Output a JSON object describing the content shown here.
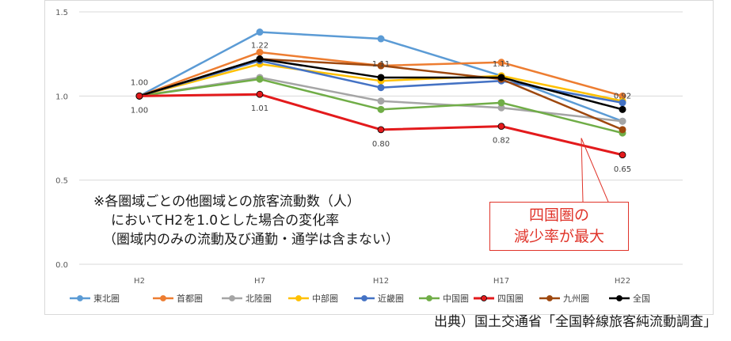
{
  "chart_data": {
    "type": "line",
    "categories": [
      "H2",
      "H7",
      "H12",
      "H17",
      "H22"
    ],
    "ylim": [
      0,
      1.5
    ],
    "yticks": [
      "0.0",
      "0.5",
      "1.0",
      "1.5"
    ],
    "grid": true,
    "legend_placement": "bottom",
    "series": [
      {
        "name": "東北圏",
        "color": "#5b9bd5",
        "values": [
          1.0,
          1.38,
          1.34,
          1.12,
          0.85
        ]
      },
      {
        "name": "首都圏",
        "color": "#ed7d31",
        "values": [
          1.0,
          1.26,
          1.18,
          1.2,
          1.0
        ]
      },
      {
        "name": "北陸圏",
        "color": "#a5a5a5",
        "values": [
          1.0,
          1.11,
          0.97,
          0.93,
          0.85
        ]
      },
      {
        "name": "中部圏",
        "color": "#ffc000",
        "values": [
          1.0,
          1.19,
          1.09,
          1.12,
          0.97
        ]
      },
      {
        "name": "近畿圏",
        "color": "#4472c4",
        "values": [
          1.0,
          1.21,
          1.05,
          1.09,
          0.96
        ]
      },
      {
        "name": "中国圏",
        "color": "#70ad47",
        "values": [
          1.0,
          1.1,
          0.92,
          0.96,
          0.78
        ]
      },
      {
        "name": "四国圏",
        "color": "#e31a1c",
        "values": [
          1.0,
          1.01,
          0.8,
          0.82,
          0.65
        ]
      },
      {
        "name": "九州圏",
        "color": "#9e480e",
        "values": [
          1.0,
          1.22,
          1.18,
          1.1,
          0.8
        ]
      },
      {
        "name": "全国",
        "color": "#000000",
        "values": [
          1.0,
          1.22,
          1.11,
          1.11,
          0.92
        ]
      }
    ],
    "data_labels": [
      {
        "text": "1.00",
        "x": "H2",
        "y": 1.0,
        "pos": "above"
      },
      {
        "text": "1.00",
        "x": "H2",
        "y": 1.0,
        "pos": "below"
      },
      {
        "text": "1.22",
        "x": "H7",
        "y": 1.22,
        "pos": "above"
      },
      {
        "text": "1.01",
        "x": "H7",
        "y": 1.01,
        "pos": "below"
      },
      {
        "text": "1.11",
        "x": "H12",
        "y": 1.11,
        "pos": "above"
      },
      {
        "text": "0.80",
        "x": "H12",
        "y": 0.8,
        "pos": "below"
      },
      {
        "text": "1.11",
        "x": "H17",
        "y": 1.11,
        "pos": "above"
      },
      {
        "text": "0.82",
        "x": "H17",
        "y": 0.82,
        "pos": "below"
      },
      {
        "text": "0.92",
        "x": "H22",
        "y": 0.92,
        "pos": "above"
      },
      {
        "text": "0.65",
        "x": "H22",
        "y": 0.65,
        "pos": "below"
      }
    ]
  },
  "annotation": {
    "line1": "※各圏域ごとの他圏域との旅客流動数（人）",
    "line2": "においてH2を1.0とした場合の変化率",
    "line3": "（圏域内のみの流動及び通勤・通学は含まない）"
  },
  "callout": {
    "line1": "四国圏の",
    "line2": "減少率が最大",
    "color": "#e0342a"
  },
  "source": "出典）国土交通省「全国幹線旅客純流動調査」"
}
